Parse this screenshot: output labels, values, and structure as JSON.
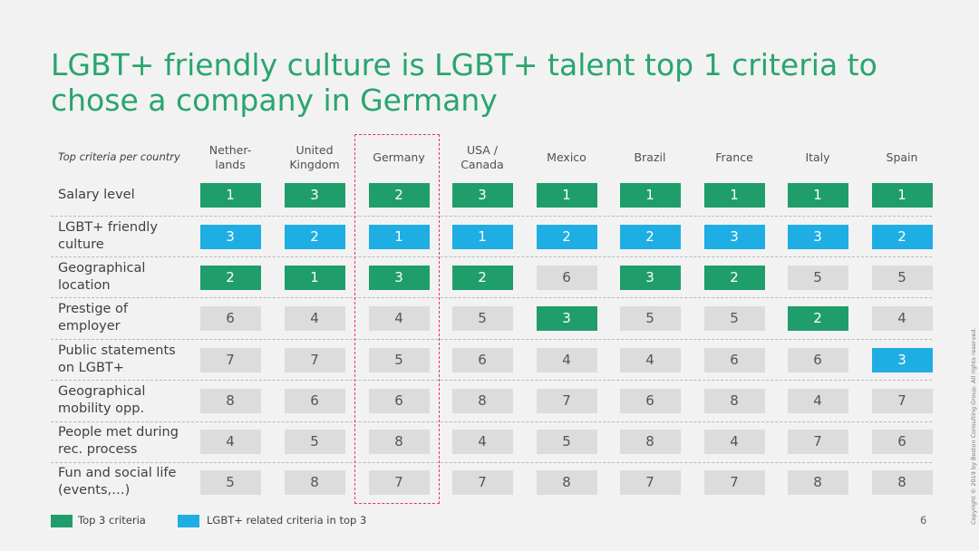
{
  "title": "LGBT+ friendly culture is LGBT+ talent top 1 criteria to chose a company in Germany",
  "corner_label": "Top criteria per country",
  "colors": {
    "top3": "#1f9d6b",
    "lgbt": "#1eaee3",
    "other": "#dcdcdc",
    "highlight": "#e8384f",
    "title": "#29a56f"
  },
  "columns": [
    "Nether-\nlands",
    "United\nKingdom",
    "Germany",
    "USA /\nCanada",
    "Mexico",
    "Brazil",
    "France",
    "Italy",
    "Spain"
  ],
  "highlighted_column": "Germany",
  "rows": [
    {
      "label": "Salary level",
      "values": [
        1,
        3,
        2,
        3,
        1,
        1,
        1,
        1,
        1
      ],
      "styles": [
        "g",
        "g",
        "g",
        "g",
        "g",
        "g",
        "g",
        "g",
        "g"
      ]
    },
    {
      "label": "LGBT+ friendly\nculture",
      "values": [
        3,
        2,
        1,
        1,
        2,
        2,
        3,
        3,
        2
      ],
      "styles": [
        "b",
        "b",
        "b",
        "b",
        "b",
        "b",
        "b",
        "b",
        "b"
      ]
    },
    {
      "label": "Geographical\nlocation",
      "values": [
        2,
        1,
        3,
        2,
        6,
        3,
        2,
        5,
        5
      ],
      "styles": [
        "g",
        "g",
        "g",
        "g",
        "n",
        "g",
        "g",
        "n",
        "n"
      ]
    },
    {
      "label": "Prestige of\nemployer",
      "values": [
        6,
        4,
        4,
        5,
        3,
        5,
        5,
        2,
        4
      ],
      "styles": [
        "n",
        "n",
        "n",
        "n",
        "g",
        "n",
        "n",
        "g",
        "n"
      ]
    },
    {
      "label": "Public statements\non LGBT+",
      "values": [
        7,
        7,
        5,
        6,
        4,
        4,
        6,
        6,
        3
      ],
      "styles": [
        "n",
        "n",
        "n",
        "n",
        "n",
        "n",
        "n",
        "n",
        "b"
      ]
    },
    {
      "label": "Geographical\nmobility opp.",
      "values": [
        8,
        6,
        6,
        8,
        7,
        6,
        8,
        4,
        7
      ],
      "styles": [
        "n",
        "n",
        "n",
        "n",
        "n",
        "n",
        "n",
        "n",
        "n"
      ]
    },
    {
      "label": "People met during\nrec. process",
      "values": [
        4,
        5,
        8,
        4,
        5,
        8,
        4,
        7,
        6
      ],
      "styles": [
        "n",
        "n",
        "n",
        "n",
        "n",
        "n",
        "n",
        "n",
        "n"
      ]
    },
    {
      "label": "Fun and social life\n(events,…)",
      "values": [
        5,
        8,
        7,
        7,
        8,
        7,
        7,
        8,
        8
      ],
      "styles": [
        "n",
        "n",
        "n",
        "n",
        "n",
        "n",
        "n",
        "n",
        "n"
      ]
    }
  ],
  "legend": [
    {
      "label": "Top 3 criteria",
      "color": "#1f9d6b"
    },
    {
      "label": "LGBT+ related criteria in top 3",
      "color": "#1eaee3"
    }
  ],
  "page_number": "6",
  "copyright": "Copyright © 2019 by Boston Consulting Group. All rights reserved."
}
